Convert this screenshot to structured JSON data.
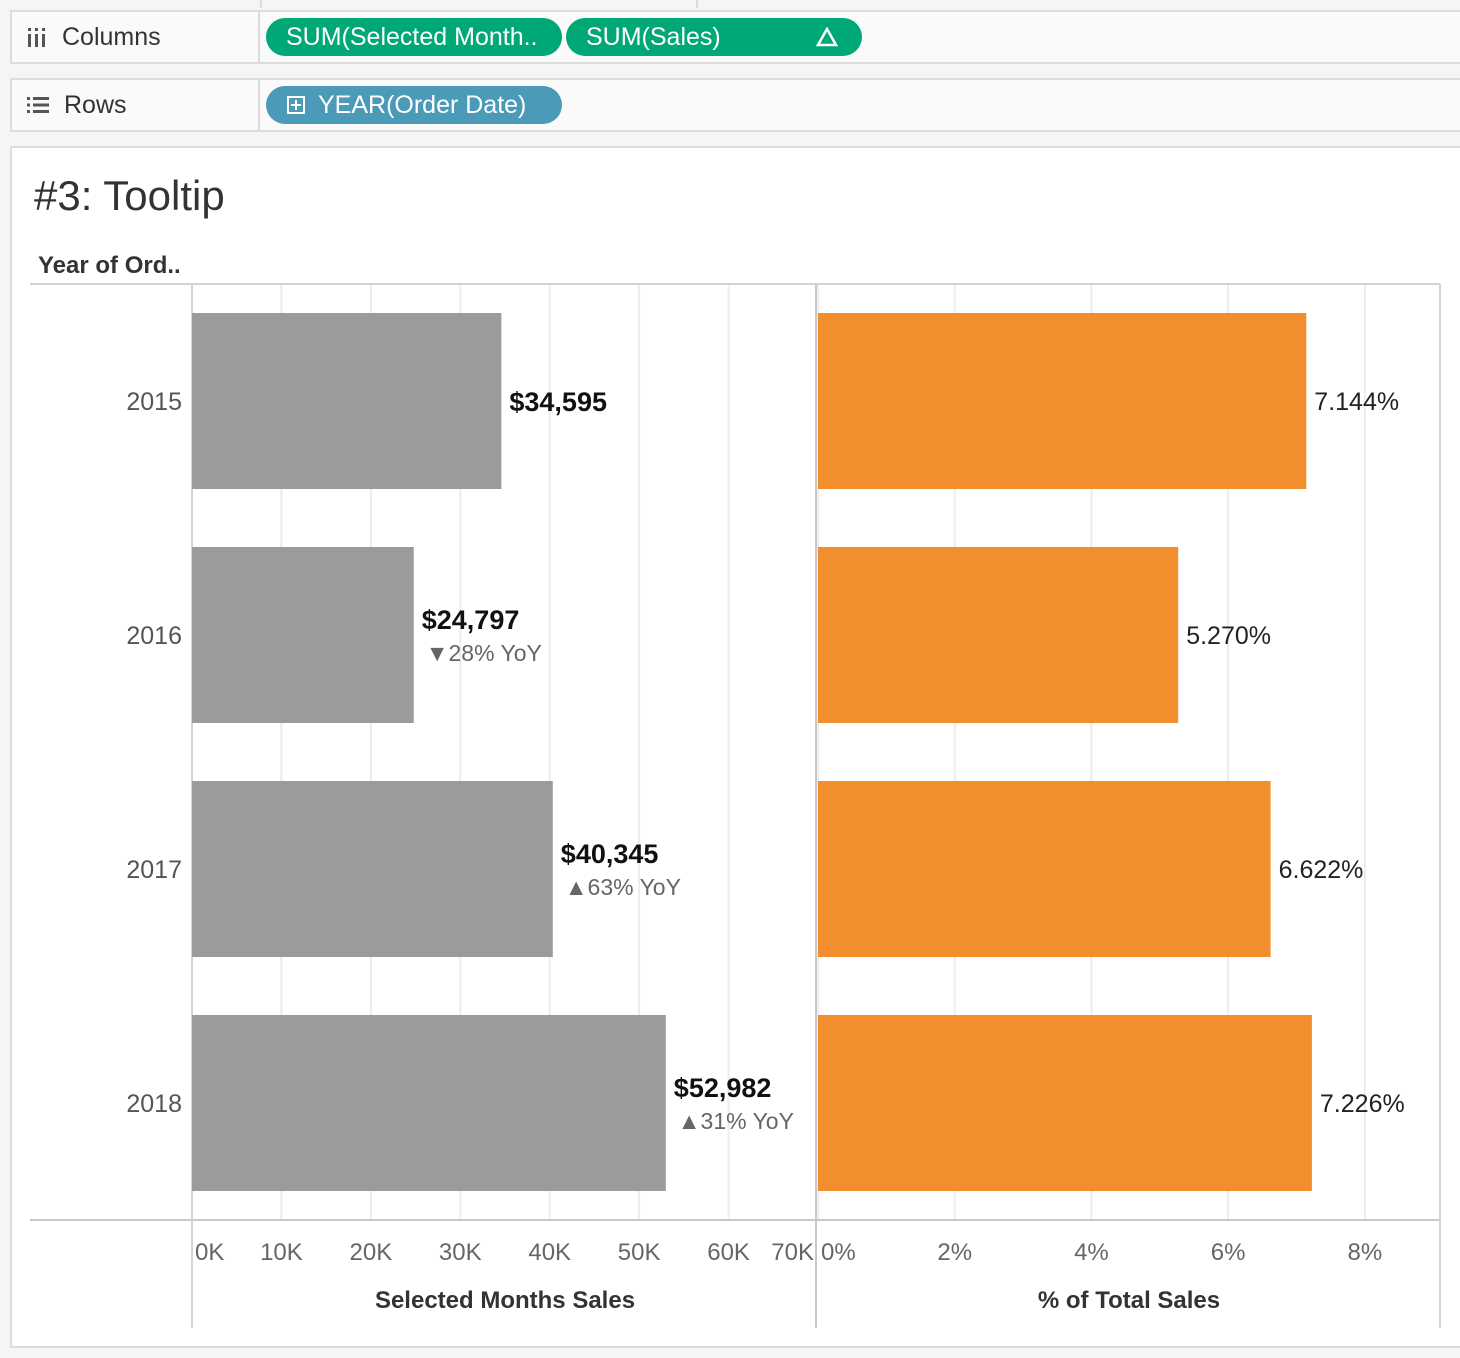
{
  "shelves": {
    "columns": {
      "label": "Columns",
      "pills": [
        {
          "label": "SUM(Selected Month..",
          "delta_icon": ""
        },
        {
          "label": "SUM(Sales)",
          "delta_icon": "triangle-delta-icon"
        }
      ]
    },
    "rows": {
      "label": "Rows",
      "pills": [
        {
          "label": "YEAR(Order Date)",
          "expand_icon": "plus-box-icon"
        }
      ]
    }
  },
  "sheet": {
    "title": "#3: Tooltip",
    "row_header": "Year of Ord.."
  },
  "colors": {
    "bar_left": "#9b9b9b",
    "bar_right": "#f28e2d",
    "shelf_pill_green": "#00a877",
    "shelf_pill_blue": "#4a9ab8"
  },
  "chart_data": [
    {
      "type": "bar",
      "orientation": "horizontal",
      "categories": [
        "2015",
        "2016",
        "2017",
        "2018"
      ],
      "values": [
        34595,
        24797,
        40345,
        52982
      ],
      "value_labels": [
        "$34,595",
        "$24,797",
        "$40,345",
        "$52,982"
      ],
      "yoy_labels": [
        "",
        "▼28% YoY",
        "▲63% YoY",
        "▲31% YoY"
      ],
      "xlabel": "Selected Months Sales",
      "xlim": [
        0,
        70000
      ],
      "ticks": [
        0,
        10000,
        20000,
        30000,
        40000,
        50000,
        60000,
        70000
      ],
      "tick_labels": [
        "0K",
        "10K",
        "20K",
        "30K",
        "40K",
        "50K",
        "60K",
        "70K"
      ],
      "grid": true
    },
    {
      "type": "bar",
      "orientation": "horizontal",
      "categories": [
        "2015",
        "2016",
        "2017",
        "2018"
      ],
      "values": [
        7.144,
        5.27,
        6.622,
        7.226
      ],
      "value_labels": [
        "7.144%",
        "5.270%",
        "6.622%",
        "7.226%"
      ],
      "xlabel": "% of Total Sales",
      "xlim": [
        0,
        9.1
      ],
      "ticks": [
        0,
        2,
        4,
        6,
        8
      ],
      "tick_labels": [
        "0%",
        "2%",
        "4%",
        "6%",
        "8%"
      ],
      "grid": true
    }
  ]
}
